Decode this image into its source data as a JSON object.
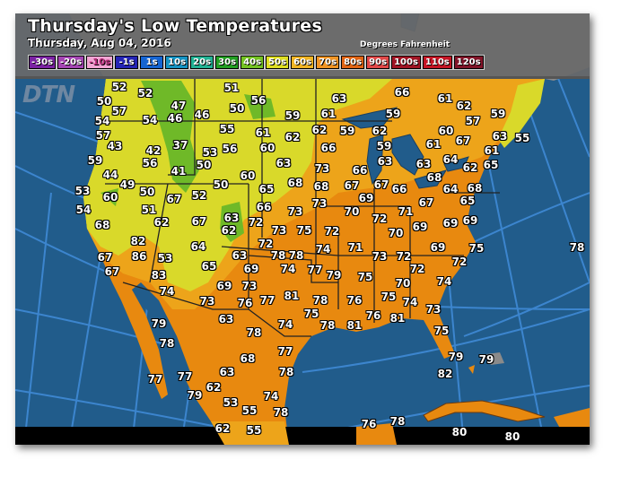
{
  "header": {
    "title": "Thursday's Low Temperatures",
    "date": "Thursday, Aug 04, 2016",
    "units": "Degrees Fahrenheit"
  },
  "logo": "DTN",
  "legend": [
    {
      "label": "-30s",
      "color": "#7b22a3"
    },
    {
      "label": "-20s",
      "color": "#a445b3"
    },
    {
      "label": "-10s",
      "color": "#f2a6d4"
    },
    {
      "label": "-1s",
      "color": "#2424b4"
    },
    {
      "label": "1s",
      "color": "#1464d2"
    },
    {
      "label": "10s",
      "color": "#1492c2"
    },
    {
      "label": "20s",
      "color": "#22b294"
    },
    {
      "label": "30s",
      "color": "#229e22"
    },
    {
      "label": "40s",
      "color": "#74c222"
    },
    {
      "label": "50s",
      "color": "#dede22"
    },
    {
      "label": "60s",
      "color": "#f0b424"
    },
    {
      "label": "70s",
      "color": "#f09424"
    },
    {
      "label": "80s",
      "color": "#e06414"
    },
    {
      "label": "90s",
      "color": "#e04848"
    },
    {
      "label": "100s",
      "color": "#a01424"
    },
    {
      "label": "110s",
      "color": "#c41424"
    },
    {
      "label": "120s",
      "color": "#801428"
    }
  ],
  "colors": {
    "ocean": "#215c8b",
    "land_gray": "#8a8a8a",
    "zone_50s": "#d9d92a",
    "zone_60s": "#eda41a",
    "zone_70s": "#e8890f",
    "zone_40s": "#6fb928",
    "grid": "#3f8ad6"
  },
  "map": {
    "labels": [
      "52",
      "52",
      "51",
      "56",
      "59",
      "50",
      "47",
      "50",
      "57",
      "54",
      "54",
      "46",
      "46",
      "55",
      "61",
      "62",
      "57",
      "43",
      "37",
      "42",
      "53",
      "56",
      "60",
      "59",
      "56",
      "50",
      "63",
      "41",
      "44",
      "60",
      "68",
      "49",
      "50",
      "50",
      "65",
      "53",
      "60",
      "67",
      "52",
      "54",
      "51",
      "66",
      "73",
      "62",
      "67",
      "63",
      "62",
      "68",
      "73",
      "75",
      "72",
      "82",
      "64",
      "63",
      "66",
      "61",
      "62",
      "61",
      "59",
      "57",
      "59",
      "62",
      "59",
      "62",
      "60",
      "61",
      "67",
      "63",
      "55",
      "66",
      "59",
      "61",
      "64",
      "63",
      "73",
      "66",
      "63",
      "68",
      "62",
      "65",
      "68",
      "67",
      "67",
      "66",
      "64",
      "68",
      "69",
      "73",
      "65",
      "67",
      "70",
      "71",
      "72",
      "69",
      "69",
      "69",
      "70",
      "72",
      "74",
      "71",
      "69",
      "75",
      "78",
      "72",
      "78",
      "63",
      "73",
      "72",
      "72",
      "65",
      "69",
      "74",
      "77",
      "79",
      "75",
      "72",
      "70",
      "74",
      "69",
      "73",
      "81",
      "77",
      "76",
      "73",
      "78",
      "76",
      "75",
      "74",
      "73",
      "63",
      "75",
      "76",
      "81",
      "74",
      "78",
      "81",
      "78",
      "75",
      "67",
      "86",
      "53",
      "78",
      "67",
      "83",
      "74",
      "79",
      "78",
      "68",
      "63",
      "77",
      "78",
      "77",
      "77",
      "62",
      "79",
      "74",
      "53",
      "55",
      "78",
      "62",
      "55",
      "79",
      "79",
      "82",
      "76",
      "78",
      "80",
      "80"
    ]
  }
}
